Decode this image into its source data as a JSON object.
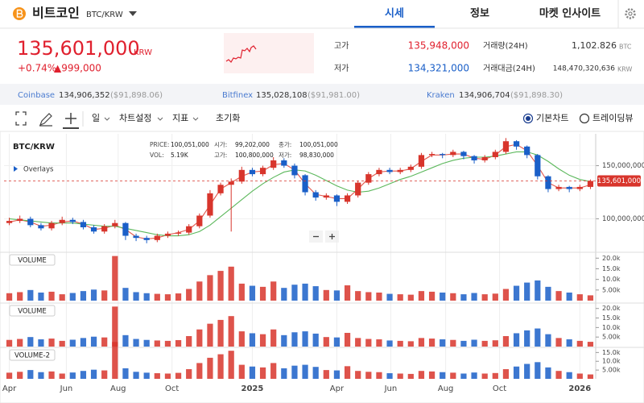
{
  "header": {
    "coin": "비트코인",
    "pair": "BTC/KRW",
    "tabs": [
      "시세",
      "정보",
      "마켓 인사이트"
    ]
  },
  "price": {
    "current": "135,601,000",
    "unit": "KRW",
    "change_rate": "+0.74%",
    "change": "▲999,000"
  },
  "stats": [
    {
      "label": "고가",
      "value": "135,948,000"
    },
    {
      "label": "저가",
      "value": "134,321,000"
    },
    {
      "label": "거래량(24H)",
      "value": "1,102.826",
      "unit": "BTC"
    },
    {
      "label": "거래대금(24H)",
      "value": "148,470,320,636",
      "unit": "KRW"
    }
  ],
  "exchanges": [
    {
      "name": "Coinbase",
      "price": "134,906,352",
      "usd": "($91,898.06)"
    },
    {
      "name": "Bitfinex",
      "price": "135,028,108",
      "usd": "($91,981.00)"
    },
    {
      "name": "Kraken",
      "price": "134,906,704",
      "usd": "($91,898.30)"
    }
  ],
  "toolbar": {
    "interval": "일",
    "settings": "차트설정",
    "indicators": "지표",
    "reset": "초기화",
    "modes": [
      "기본차트",
      "트레이딩뷰"
    ]
  },
  "chart_data": {
    "type": "candlestick",
    "title": "BTC/KRW",
    "overlay_label": "Overlays",
    "ohlc_info": [
      {
        "label": "PRICE:",
        "value": "100,051,000"
      },
      {
        "label": "시가:",
        "value": "99,202,000"
      },
      {
        "label": "종가:",
        "value": "100,051,000"
      },
      {
        "label": "VOL:",
        "value": "5.19K"
      },
      {
        "label": "고가:",
        "value": "100,800,000"
      },
      {
        "label": "저가:",
        "value": "98,830,000"
      }
    ],
    "up_color": "#d8352c",
    "down_color": "#1a5fc8",
    "open": [
      96000000,
      98000000,
      100000000,
      94000000,
      91000000,
      96000000,
      99000000,
      97000000,
      92000000,
      88000000,
      93000000,
      96000000,
      84000000,
      82000000,
      80000000,
      84000000,
      86000000,
      87000000,
      93000000,
      103000000,
      124000000,
      132000000,
      135000000,
      146000000,
      142000000,
      148000000,
      155000000,
      150000000,
      141000000,
      125000000,
      120000000,
      122000000,
      116000000,
      122000000,
      134000000,
      142000000,
      146000000,
      144000000,
      146000000,
      149000000,
      160000000,
      161000000,
      160000000,
      163000000,
      159000000,
      155000000,
      158000000,
      163000000,
      173000000,
      168000000,
      160000000,
      140000000,
      128000000,
      130000000,
      128000000,
      130000000
    ],
    "high": [
      101000000,
      103000000,
      102000000,
      96000000,
      98000000,
      102000000,
      101000000,
      99000000,
      94000000,
      95000000,
      99000000,
      97000000,
      86000000,
      84000000,
      86000000,
      88000000,
      89000000,
      95000000,
      105000000,
      127000000,
      134000000,
      138000000,
      149000000,
      148000000,
      150000000,
      158000000,
      157000000,
      152000000,
      142000000,
      127000000,
      124000000,
      123000000,
      124000000,
      136000000,
      144000000,
      148000000,
      148000000,
      148000000,
      151000000,
      162000000,
      163000000,
      162000000,
      165000000,
      164000000,
      160000000,
      160000000,
      165000000,
      176000000,
      174000000,
      169000000,
      161000000,
      141000000,
      132000000,
      131000000,
      132000000,
      137000000
    ],
    "low": [
      94000000,
      96000000,
      92000000,
      89000000,
      89000000,
      94000000,
      95000000,
      90000000,
      86000000,
      86000000,
      91000000,
      80000000,
      79000000,
      77000000,
      78000000,
      82000000,
      84000000,
      85000000,
      91000000,
      101000000,
      122000000,
      88000000,
      133000000,
      140000000,
      140000000,
      146000000,
      148000000,
      138000000,
      122000000,
      117000000,
      118000000,
      112000000,
      114000000,
      120000000,
      132000000,
      140000000,
      142000000,
      142000000,
      144000000,
      147000000,
      158000000,
      157000000,
      158000000,
      156000000,
      152000000,
      153000000,
      156000000,
      161000000,
      165000000,
      157000000,
      137000000,
      125000000,
      126000000,
      125000000,
      126000000,
      128000000
    ],
    "close": [
      98000000,
      100000000,
      94000000,
      91000000,
      96000000,
      99000000,
      97000000,
      92000000,
      88000000,
      93000000,
      96000000,
      84000000,
      82000000,
      80000000,
      84000000,
      86000000,
      87000000,
      93000000,
      103000000,
      124000000,
      132000000,
      135000000,
      146000000,
      142000000,
      148000000,
      155000000,
      150000000,
      141000000,
      125000000,
      120000000,
      122000000,
      116000000,
      122000000,
      134000000,
      142000000,
      146000000,
      144000000,
      146000000,
      149000000,
      160000000,
      161000000,
      160000000,
      163000000,
      159000000,
      155000000,
      158000000,
      163000000,
      173000000,
      168000000,
      160000000,
      140000000,
      128000000,
      130000000,
      128000000,
      130000000,
      135601000
    ],
    "ma": [
      {
        "color": "#e2574c",
        "values": [
          97000000,
          99000000,
          97000000,
          93000000,
          94000000,
          97000000,
          98000000,
          95000000,
          90000000,
          91000000,
          94000000,
          90000000,
          83000000,
          81000000,
          82000000,
          85000000,
          87000000,
          90000000,
          98000000,
          113000000,
          128000000,
          134000000,
          140000000,
          144000000,
          145000000,
          151000000,
          152000000,
          146000000,
          133000000,
          123000000,
          121000000,
          119000000,
          119000000,
          128000000,
          138000000,
          144000000,
          145000000,
          145000000,
          147000000,
          154000000,
          160000000,
          160000000,
          161000000,
          161000000,
          157000000,
          156000000,
          160000000,
          168000000,
          170000000,
          164000000,
          150000000,
          134000000,
          129000000,
          129000000,
          129000000,
          132000000
        ]
      },
      {
        "color": "#5cb85c",
        "values": [
          100000000,
          99000000,
          98000000,
          97000000,
          96000000,
          96000000,
          96000000,
          95000000,
          94000000,
          93000000,
          93000000,
          91000000,
          89000000,
          87000000,
          85000000,
          84000000,
          84000000,
          85000000,
          88000000,
          94000000,
          102000000,
          110000000,
          118000000,
          126000000,
          133000000,
          139000000,
          144000000,
          146000000,
          145000000,
          141000000,
          136000000,
          131000000,
          127000000,
          125000000,
          126000000,
          129000000,
          133000000,
          137000000,
          140000000,
          144000000,
          148000000,
          152000000,
          155000000,
          157000000,
          158000000,
          158000000,
          159000000,
          161000000,
          163000000,
          163000000,
          160000000,
          154000000,
          147000000,
          141000000,
          137000000,
          135000000
        ]
      }
    ],
    "ylim": [
      70000000,
      180000000
    ],
    "yticks": [
      {
        "value": 100000000,
        "label": "100,000,000"
      },
      {
        "value": 150000000,
        "label": "150,000,000"
      }
    ],
    "last_price": {
      "value": 135601000,
      "label": "135,601,000"
    },
    "xticks": [
      {
        "value": 0,
        "label": "Apr"
      },
      {
        "value": 5.4,
        "label": "Jun"
      },
      {
        "value": 10.3,
        "label": "Aug"
      },
      {
        "value": 15.4,
        "label": "Oct"
      },
      {
        "value": 23,
        "label": "2025"
      },
      {
        "value": 31,
        "label": "Apr"
      },
      {
        "value": 36.1,
        "label": "Jun"
      },
      {
        "value": 41.3,
        "label": "Aug"
      },
      {
        "value": 46.4,
        "label": "Oct"
      },
      {
        "value": 54,
        "label": "2026"
      }
    ],
    "grid": true,
    "volume": {
      "values": [
        3500,
        4000,
        5000,
        3800,
        4200,
        3000,
        3600,
        4500,
        5200,
        4800,
        21000,
        6000,
        4000,
        3500,
        3200,
        3000,
        3400,
        5500,
        9000,
        12000,
        14000,
        16000,
        8000,
        7000,
        6500,
        9000,
        6000,
        7500,
        8000,
        6800,
        5000,
        4800,
        7200,
        4500,
        4000,
        3800,
        3200,
        3000,
        2800,
        4500,
        4200,
        3800,
        3500,
        3000,
        3600,
        3000,
        3300,
        5500,
        7000,
        8500,
        9500,
        6500,
        4500,
        3800,
        3000,
        2500
      ],
      "yticks": [
        {
          "value": 20000,
          "label": "20.0k"
        },
        {
          "value": 15000,
          "label": "15.0k"
        },
        {
          "value": 10000,
          "label": "10.0k"
        },
        {
          "value": 5000,
          "label": "5.00k"
        }
      ]
    },
    "volume_panels": [
      {
        "title": "VOLUME",
        "ylim": [
          0,
          22000
        ]
      },
      {
        "title": "VOLUME",
        "ylim": [
          0,
          22000
        ]
      },
      {
        "title": "VOLUME-2",
        "ylim": [
          0,
          17000
        ]
      }
    ]
  }
}
